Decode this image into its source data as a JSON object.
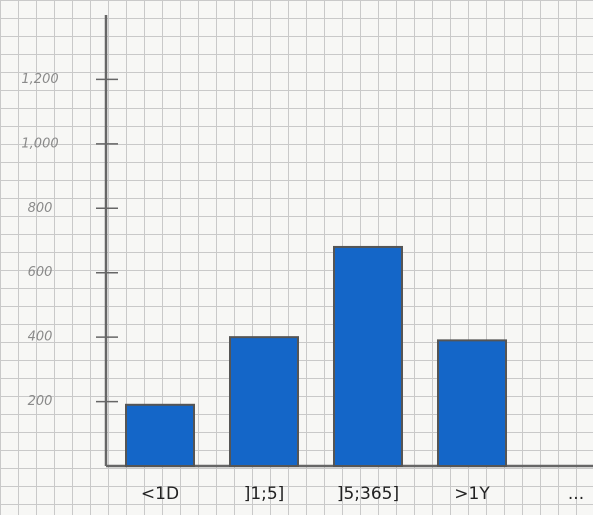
{
  "chart_data": {
    "type": "bar",
    "categories": [
      "<1D",
      "]1;5]",
      "]5;365]",
      ">1Y",
      "..."
    ],
    "values": [
      190,
      400,
      680,
      390,
      null
    ],
    "color": "#1466c8",
    "ylim": [
      0,
      1400
    ],
    "yticks": [
      {
        "value": 200,
        "label": "200"
      },
      {
        "value": 400,
        "label": "400"
      },
      {
        "value": 600,
        "label": "600"
      },
      {
        "value": 800,
        "label": "800"
      },
      {
        "value": 1000,
        "label": "1,000"
      },
      {
        "value": 1200,
        "label": "1,200"
      }
    ],
    "grid": true
  }
}
